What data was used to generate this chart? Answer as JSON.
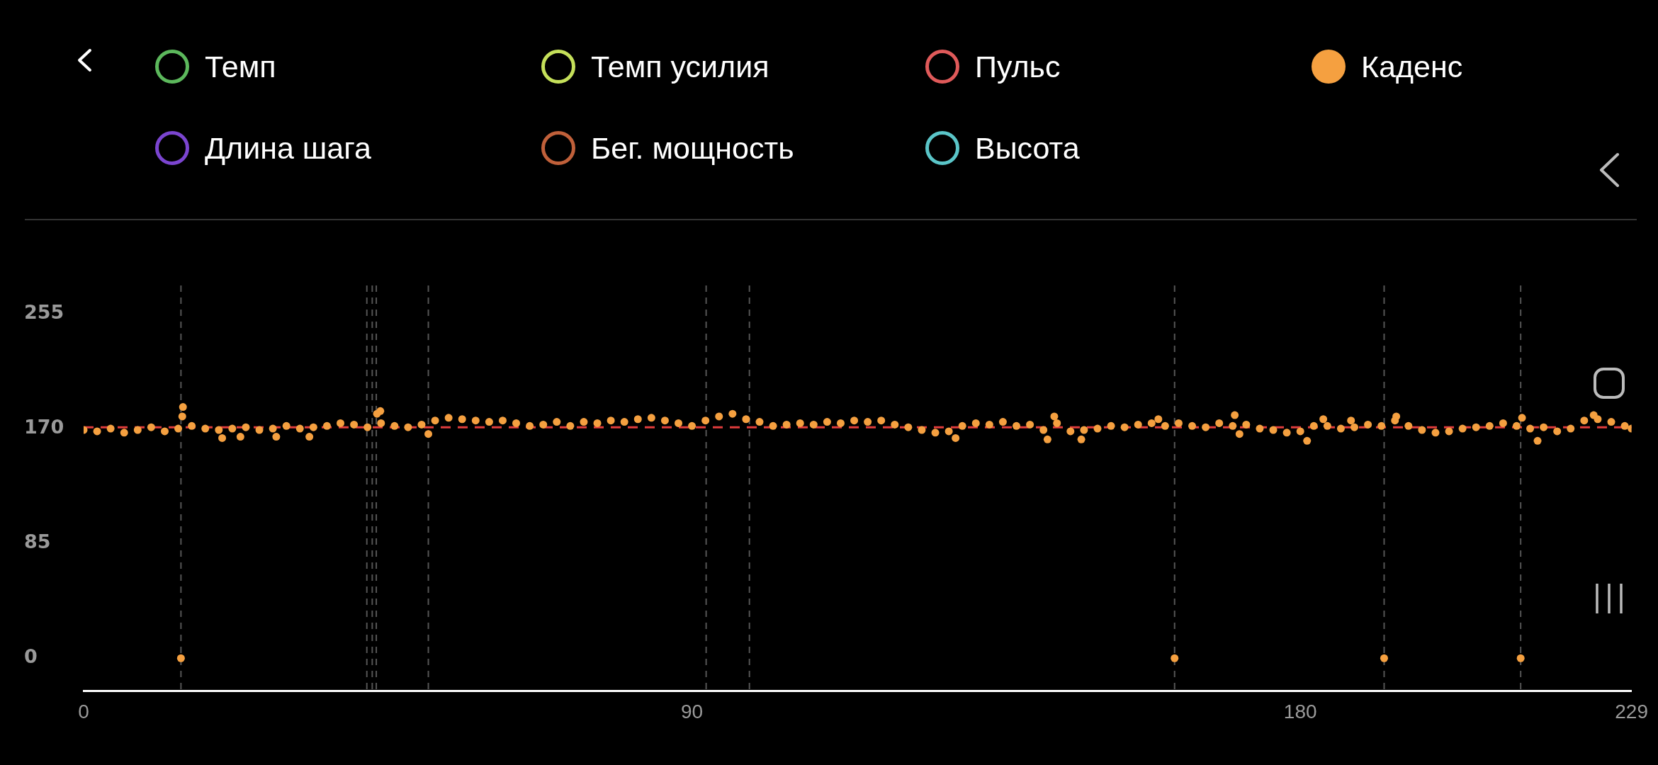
{
  "chart_data": {
    "type": "scatter",
    "legend": "top",
    "marker": "circle",
    "grid": false,
    "xlim": [
      0,
      229
    ],
    "xticks": [
      0,
      90,
      180,
      229
    ],
    "ylim": [
      -24,
      276
    ],
    "yticks": [
      0,
      85,
      170,
      255
    ],
    "series": [
      {
        "name": "Темп",
        "color": "#5cb85c"
      },
      {
        "name": "Темп усилия",
        "color": "#c5e05a"
      },
      {
        "name": "Пульс",
        "color": "#e05a5a"
      },
      {
        "name": "Каденс",
        "color": "#f5a040",
        "x": [
          0,
          2,
          4,
          6,
          8,
          10,
          12,
          14,
          14.4,
          14.6,
          14.7,
          16,
          18,
          20,
          20.5,
          22,
          23.2,
          24,
          26,
          28,
          28.5,
          30,
          32,
          33.4,
          34,
          36,
          38,
          40,
          42,
          43.4,
          43.9,
          44,
          46,
          48,
          50,
          51,
          52,
          54,
          56,
          58,
          60,
          62,
          64,
          66,
          68,
          70,
          72,
          74,
          76,
          78,
          80,
          82,
          84,
          86,
          88,
          90,
          92,
          94,
          96,
          98,
          100,
          102,
          104,
          106,
          108,
          110,
          112,
          114,
          116,
          118,
          120,
          122,
          124,
          126,
          128,
          129,
          130,
          132,
          134,
          136,
          138,
          140,
          142,
          142.6,
          143.6,
          144,
          146,
          147.6,
          148,
          150,
          152,
          154,
          156,
          158,
          159,
          160,
          161.4,
          162,
          164,
          166,
          168,
          170,
          170.3,
          171,
          172,
          174,
          176,
          178,
          180,
          181,
          182,
          183.4,
          184,
          186,
          187.5,
          188,
          190,
          192,
          192.4,
          194,
          194.2,
          196,
          198,
          200,
          202,
          204,
          206,
          208,
          210,
          212,
          212.6,
          212.8,
          214,
          215.1,
          216,
          218,
          220,
          222,
          223.4,
          224,
          226,
          228,
          229
        ],
        "values": [
          169,
          168,
          170,
          167,
          169,
          171,
          168,
          170,
          0,
          179,
          186,
          172,
          170,
          169,
          163,
          170,
          164,
          171,
          169,
          170,
          164,
          172,
          170,
          164,
          171,
          172,
          174,
          173,
          171,
          181,
          183,
          174,
          172,
          171,
          173,
          166,
          176,
          178,
          177,
          176,
          175,
          176,
          174,
          172,
          173,
          175,
          172,
          175,
          174,
          176,
          175,
          177,
          178,
          176,
          174,
          172,
          176,
          179,
          181,
          177,
          175,
          172,
          173,
          174,
          173,
          175,
          174,
          176,
          175,
          176,
          173,
          171,
          169,
          167,
          168,
          163,
          172,
          174,
          173,
          175,
          172,
          173,
          169,
          162,
          179,
          174,
          168,
          162,
          169,
          170,
          172,
          171,
          173,
          174,
          177,
          172,
          0,
          174,
          172,
          171,
          174,
          172,
          180,
          166,
          173,
          170,
          169,
          167,
          168,
          161,
          172,
          177,
          172,
          170,
          176,
          171,
          173,
          172,
          0,
          176,
          179,
          172,
          169,
          167,
          168,
          170,
          171,
          172,
          174,
          172,
          0,
          178,
          170,
          161,
          171,
          168,
          170,
          176,
          180,
          177,
          175,
          172,
          170
        ]
      },
      {
        "name": "Длина шага",
        "color": "#7b45d0"
      },
      {
        "name": "Бег. мощность",
        "color": "#c0603a"
      },
      {
        "name": "Высота",
        "color": "#5ac5c8"
      }
    ],
    "ref_lines": [
      {
        "axis": "y",
        "value": 171,
        "color": "#e03c3c",
        "line_style": "dashed"
      },
      {
        "axis": "x",
        "value": 14.4,
        "color": "#555555",
        "line_style": "dashed"
      },
      {
        "axis": "x",
        "value": 41.9,
        "color": "#555555",
        "line_style": "dashed"
      },
      {
        "axis": "x",
        "value": 42.7,
        "color": "#555555",
        "line_style": "dashed"
      },
      {
        "axis": "x",
        "value": 43.3,
        "color": "#555555",
        "line_style": "dashed"
      },
      {
        "axis": "x",
        "value": 51,
        "color": "#555555",
        "line_style": "dashed"
      },
      {
        "axis": "x",
        "value": 92.1,
        "color": "#555555",
        "line_style": "dashed"
      },
      {
        "axis": "x",
        "value": 98.5,
        "color": "#555555",
        "line_style": "dashed"
      },
      {
        "axis": "x",
        "value": 161.4,
        "color": "#555555",
        "line_style": "dashed"
      },
      {
        "axis": "x",
        "value": 192.4,
        "color": "#555555",
        "line_style": "dashed"
      },
      {
        "axis": "x",
        "value": 212.6,
        "color": "#555555",
        "line_style": "dashed"
      }
    ]
  }
}
